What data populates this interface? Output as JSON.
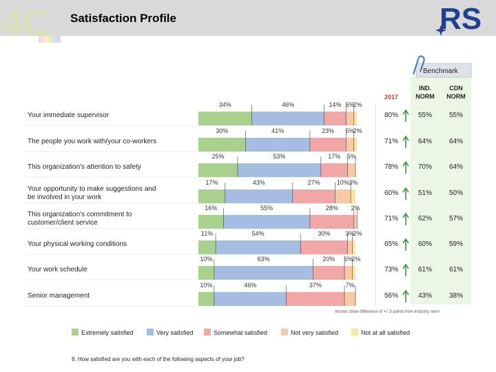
{
  "header": {
    "title": "Satisfaction Profile",
    "brand_logo": "RS",
    "corner_logo": "4C"
  },
  "benchmark": {
    "title": "Benchmark",
    "col_2017": "2017",
    "col_ind": [
      "IND.",
      "NORM"
    ],
    "col_cdn": [
      "CDN",
      "NORM"
    ],
    "footnote": "Arrows show difference of +/- 5 points from industry norm"
  },
  "legend": [
    "Extremely satisfied",
    "Very satisfied",
    "Somewhat satisfied",
    "Not very satisfied",
    "Not at all satisfied"
  ],
  "question": "8. How satisfied are you with each of the following aspects of your job?",
  "colors": {
    "Extremely satisfied": "#a9d18e",
    "Very satisfied": "#a5bde0",
    "Somewhat satisfied": "#f0a7a5",
    "Not very satisfied": "#f7c9a6",
    "Not at all satisfied": "#f9e7a0",
    "benchmark_bg": "#ecf6e4",
    "arrow": "#3a9a3a",
    "header": "#d9d9d9",
    "brand": "#1f3f8f"
  },
  "chart_data": {
    "type": "bar",
    "orientation": "horizontal",
    "stacked": true,
    "categories": [
      [
        "Your immediate supervisor"
      ],
      [
        "The people you work with/your co-workers"
      ],
      [
        "This organization's attention to safety"
      ],
      [
        "Your opportunity to make suggestions and",
        "be involved in your work"
      ],
      [
        "This organization's commitment to",
        "customer/client service"
      ],
      [
        "Your physical working conditions"
      ],
      [
        "Your work schedule"
      ],
      [
        "Senior management"
      ]
    ],
    "series": [
      {
        "name": "Extremely satisfied",
        "values": [
          34,
          30,
          25,
          17,
          16,
          11,
          10,
          10
        ]
      },
      {
        "name": "Very satisfied",
        "values": [
          46,
          41,
          53,
          43,
          55,
          54,
          63,
          46
        ]
      },
      {
        "name": "Somewhat satisfied",
        "values": [
          14,
          23,
          17,
          27,
          28,
          30,
          20,
          37
        ]
      },
      {
        "name": "Not very satisfied",
        "values": [
          5,
          5,
          5,
          10,
          2,
          3,
          5,
          7
        ]
      },
      {
        "name": "Not at all satisfied",
        "values": [
          2,
          2,
          0,
          3,
          0,
          2,
          2,
          0
        ]
      }
    ],
    "labels": [
      [
        "34%",
        "46%",
        "14%",
        "5%",
        "2%"
      ],
      [
        "30%",
        "41%",
        "23%",
        "5%",
        "2%"
      ],
      [
        "25%",
        "53%",
        "17%",
        "5%",
        ""
      ],
      [
        "17%",
        "43%",
        "27%",
        "10%",
        "3%"
      ],
      [
        "16%",
        "55%",
        "28%",
        "2%",
        ""
      ],
      [
        "11%",
        "54%",
        "30%",
        "3%",
        "2%"
      ],
      [
        "10%",
        "63%",
        "20%",
        "5%",
        "2%"
      ],
      [
        "10%",
        "46%",
        "37%",
        "7%",
        ""
      ]
    ],
    "score_2017": [
      "80%",
      "71%",
      "78%",
      "60%",
      "71%",
      "65%",
      "73%",
      "56%"
    ],
    "ind_norm": [
      "55%",
      "64%",
      "70%",
      "51%",
      "62%",
      "60%",
      "61%",
      "43%"
    ],
    "cdn_norm": [
      "55%",
      "64%",
      "64%",
      "50%",
      "57%",
      "59%",
      "61%",
      "38%"
    ],
    "arrow_up": [
      true,
      true,
      true,
      true,
      true,
      true,
      true,
      true
    ],
    "xlim": [
      0,
      100
    ]
  }
}
